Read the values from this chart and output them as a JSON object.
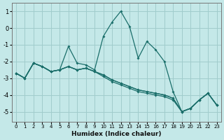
{
  "xlabel": "Humidex (Indice chaleur)",
  "background_color": "#c4e8e8",
  "grid_color": "#a0cccc",
  "line_color": "#1a6e6a",
  "xlim": [
    -0.5,
    23.5
  ],
  "ylim": [
    -5.6,
    1.5
  ],
  "yticks": [
    1,
    0,
    -1,
    -2,
    -3,
    -4,
    -5
  ],
  "xticks": [
    0,
    1,
    2,
    3,
    4,
    5,
    6,
    7,
    8,
    9,
    10,
    11,
    12,
    13,
    14,
    15,
    16,
    17,
    18,
    19,
    20,
    21,
    22,
    23
  ],
  "x": [
    0,
    1,
    2,
    3,
    4,
    5,
    6,
    7,
    8,
    9,
    10,
    11,
    12,
    13,
    14,
    15,
    16,
    17,
    18,
    19,
    20,
    21,
    22,
    23
  ],
  "lines": [
    [
      -2.7,
      -3.0,
      -2.1,
      -2.3,
      -2.6,
      -2.5,
      -1.1,
      -2.1,
      -2.2,
      -2.5,
      -0.5,
      0.35,
      1.0,
      0.1,
      -1.8,
      -0.8,
      -1.3,
      -2.0,
      -3.8,
      -5.0,
      -4.8,
      -4.3,
      -3.9,
      -4.6
    ],
    [
      -2.7,
      -3.0,
      -2.1,
      -2.3,
      -2.6,
      -2.5,
      -2.3,
      -2.5,
      -2.4,
      -2.6,
      -2.8,
      -3.1,
      -3.3,
      -3.5,
      -3.7,
      -3.8,
      -3.9,
      -4.0,
      -4.2,
      -5.0,
      -4.8,
      -4.3,
      -3.9,
      -4.6
    ],
    [
      -2.7,
      -3.0,
      -2.1,
      -2.3,
      -2.6,
      -2.5,
      -2.3,
      -2.5,
      -2.4,
      -2.6,
      -2.8,
      -3.1,
      -3.3,
      -3.5,
      -3.7,
      -3.8,
      -3.9,
      -4.0,
      -4.2,
      -5.0,
      -4.8,
      -4.3,
      -3.9,
      -4.6
    ],
    [
      -2.7,
      -3.0,
      -2.1,
      -2.3,
      -2.6,
      -2.5,
      -2.3,
      -2.5,
      -2.4,
      -2.6,
      -2.9,
      -3.2,
      -3.4,
      -3.6,
      -3.8,
      -3.9,
      -4.0,
      -4.1,
      -4.3,
      -5.0,
      -4.8,
      -4.3,
      -3.9,
      -4.6
    ]
  ]
}
